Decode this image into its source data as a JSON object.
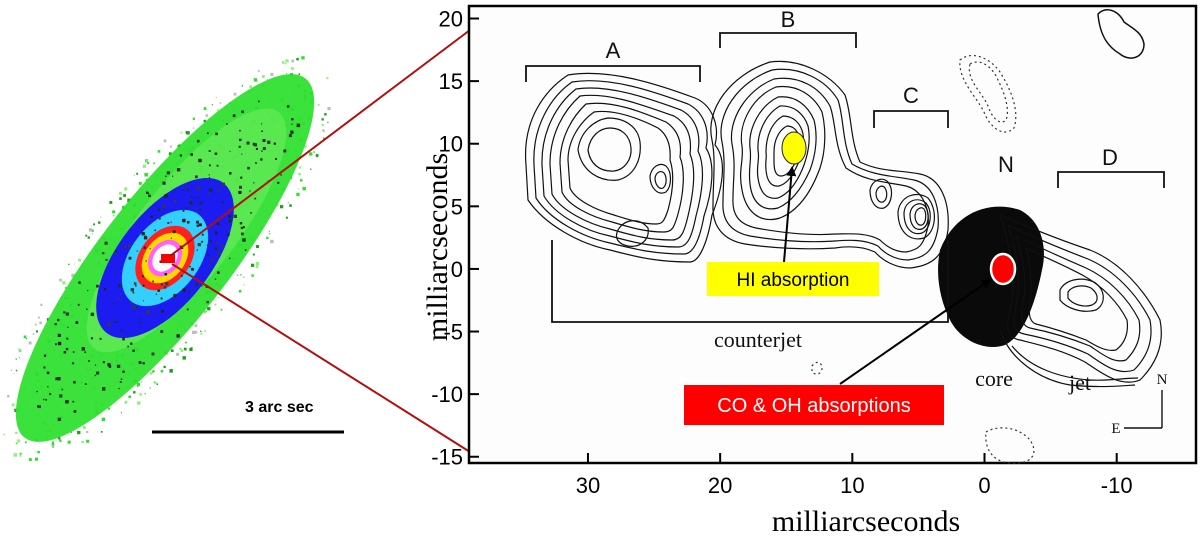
{
  "galaxy": {
    "scale_label": "3 arc sec"
  },
  "radio_map": {
    "x_axis": {
      "label": "milliarcseconds",
      "ticks": [
        30,
        20,
        10,
        0,
        -10
      ],
      "tick_labels": [
        "30",
        "20",
        "10",
        "0",
        "-10"
      ],
      "range": [
        39,
        -16
      ]
    },
    "y_axis": {
      "label": "milliarcseconds",
      "ticks": [
        20,
        15,
        10,
        5,
        0,
        -5,
        -10,
        -15
      ],
      "tick_labels": [
        "20",
        "15",
        "10",
        "5",
        "0",
        "-5",
        "-10",
        "-15"
      ],
      "range": [
        -15.5,
        21
      ]
    },
    "region_labels": {
      "A": "A",
      "B": "B",
      "C": "C",
      "D": "D",
      "N": "N",
      "counterjet": "counterjet",
      "core": "core",
      "jet": "jet"
    },
    "compass": {
      "north": "N",
      "east": "E"
    },
    "annotations": {
      "hi": "HI absorption",
      "co_oh": "CO & OH absorptions"
    },
    "colors": {
      "hi_marker": "#ffff00",
      "core_marker": "#ff0000",
      "zoom_lines": "#b01010"
    }
  }
}
